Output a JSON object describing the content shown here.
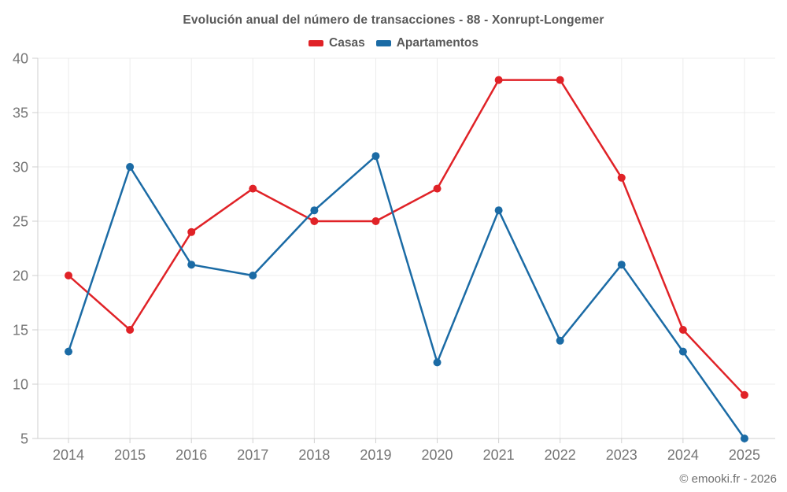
{
  "header": {
    "title": "Evolución anual del número de transacciones - 88 - Xonrupt-Longemer"
  },
  "footer": {
    "credit": "© emooki.fr - 2026"
  },
  "chart_data": {
    "type": "line",
    "title": "Evolución anual del número de transacciones - 88 - Xonrupt-Longemer",
    "categories": [
      "2014",
      "2015",
      "2016",
      "2017",
      "2018",
      "2019",
      "2020",
      "2021",
      "2022",
      "2023",
      "2024",
      "2025"
    ],
    "series": [
      {
        "name": "Casas",
        "color": "#e02227",
        "values": [
          20,
          15,
          24,
          28,
          25,
          25,
          28,
          38,
          38,
          29,
          15,
          9
        ]
      },
      {
        "name": "Apartamentos",
        "color": "#1b6ba5",
        "values": [
          13,
          30,
          21,
          20,
          26,
          31,
          12,
          26,
          14,
          21,
          13,
          5
        ]
      }
    ],
    "xlabel": "",
    "ylabel": "",
    "ylim": [
      5,
      40
    ],
    "ytick_step": 5,
    "grid": true,
    "legend_position": "top",
    "style": {
      "grid_color": "#ececec",
      "axis_color": "#cfcfcf",
      "tick_label_color": "#757575",
      "tick_font_size": 18,
      "line_width": 2.5,
      "point_radius": 5
    }
  }
}
